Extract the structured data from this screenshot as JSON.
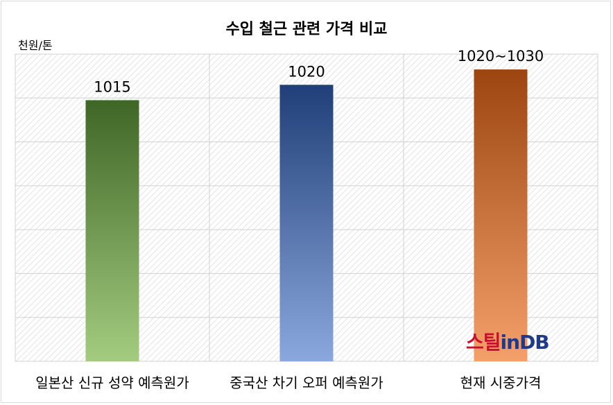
{
  "chart_data": {
    "type": "bar",
    "title": "수입 철근 관련 가격 비교",
    "ylabel": "천원/톤",
    "categories": [
      "일본산 신규 성약 예측원가",
      "중국산 차기 오퍼 예측원가",
      "현재 시중가격"
    ],
    "values": [
      1015,
      1020,
      1025
    ],
    "data_labels": [
      "1015",
      "1020",
      "1020~1030"
    ],
    "ylim": [
      930,
      1030
    ],
    "grid": true,
    "colors": [
      [
        "#3f6626",
        "#a3cc80"
      ],
      [
        "#203f78",
        "#8aa8dd"
      ],
      [
        "#9c4510",
        "#f5a06a"
      ]
    ]
  },
  "watermark": {
    "part1": "스틸",
    "part2": "inDB"
  }
}
